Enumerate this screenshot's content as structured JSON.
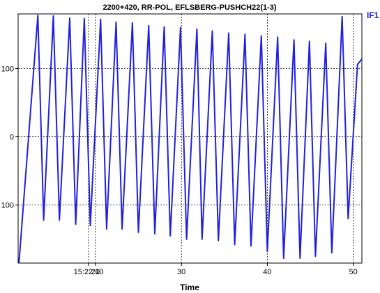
{
  "chart_data": {
    "type": "line",
    "title": "2200+420, RR-POL,  EFLSBERG-PUSHCH22(1-3)",
    "xlabel": "Time",
    "ylabel": "",
    "xlim": [
      11,
      51
    ],
    "ylim": [
      -185,
      180
    ],
    "grid": true,
    "legend_position": "top-right",
    "x_ticks": [
      {
        "value": 19.2,
        "label": "15:22:10"
      },
      {
        "value": 20,
        "label": "20"
      },
      {
        "value": 30,
        "label": "30"
      },
      {
        "value": 40,
        "label": "40"
      },
      {
        "value": 50,
        "label": "50"
      }
    ],
    "y_ticks": [
      {
        "value": 100,
        "label": "100"
      },
      {
        "value": 0,
        "label": "0"
      },
      {
        "value": -100,
        "label": "100"
      }
    ],
    "series": [
      {
        "name": "IF1",
        "color": "#2020e0",
        "x": [
          11.1,
          13.3,
          13.97,
          15.1,
          15.8,
          17.0,
          17.7,
          18.7,
          19.4,
          20.6,
          21.3,
          22.4,
          23.1,
          24.3,
          25.0,
          26.2,
          26.9,
          28.0,
          28.7,
          29.9,
          30.6,
          31.8,
          32.4,
          33.6,
          34.3,
          35.5,
          36.2,
          37.4,
          38.1,
          39.3,
          40.0,
          41.2,
          41.9,
          43.1,
          43.8,
          44.9,
          45.6,
          46.8,
          47.5,
          48.7,
          49.4,
          50.5,
          51.0
        ],
        "y": [
          -185,
          178,
          -122,
          177,
          -122,
          174,
          -128,
          173,
          -130,
          172,
          -135,
          168,
          -135,
          167,
          -140,
          163,
          -142,
          161,
          -145,
          160,
          -150,
          158,
          -150,
          155,
          -152,
          152,
          -158,
          150,
          -160,
          148,
          -168,
          146,
          -178,
          142,
          -178,
          140,
          -175,
          137,
          -170,
          176,
          -120,
          106,
          114
        ]
      }
    ]
  }
}
